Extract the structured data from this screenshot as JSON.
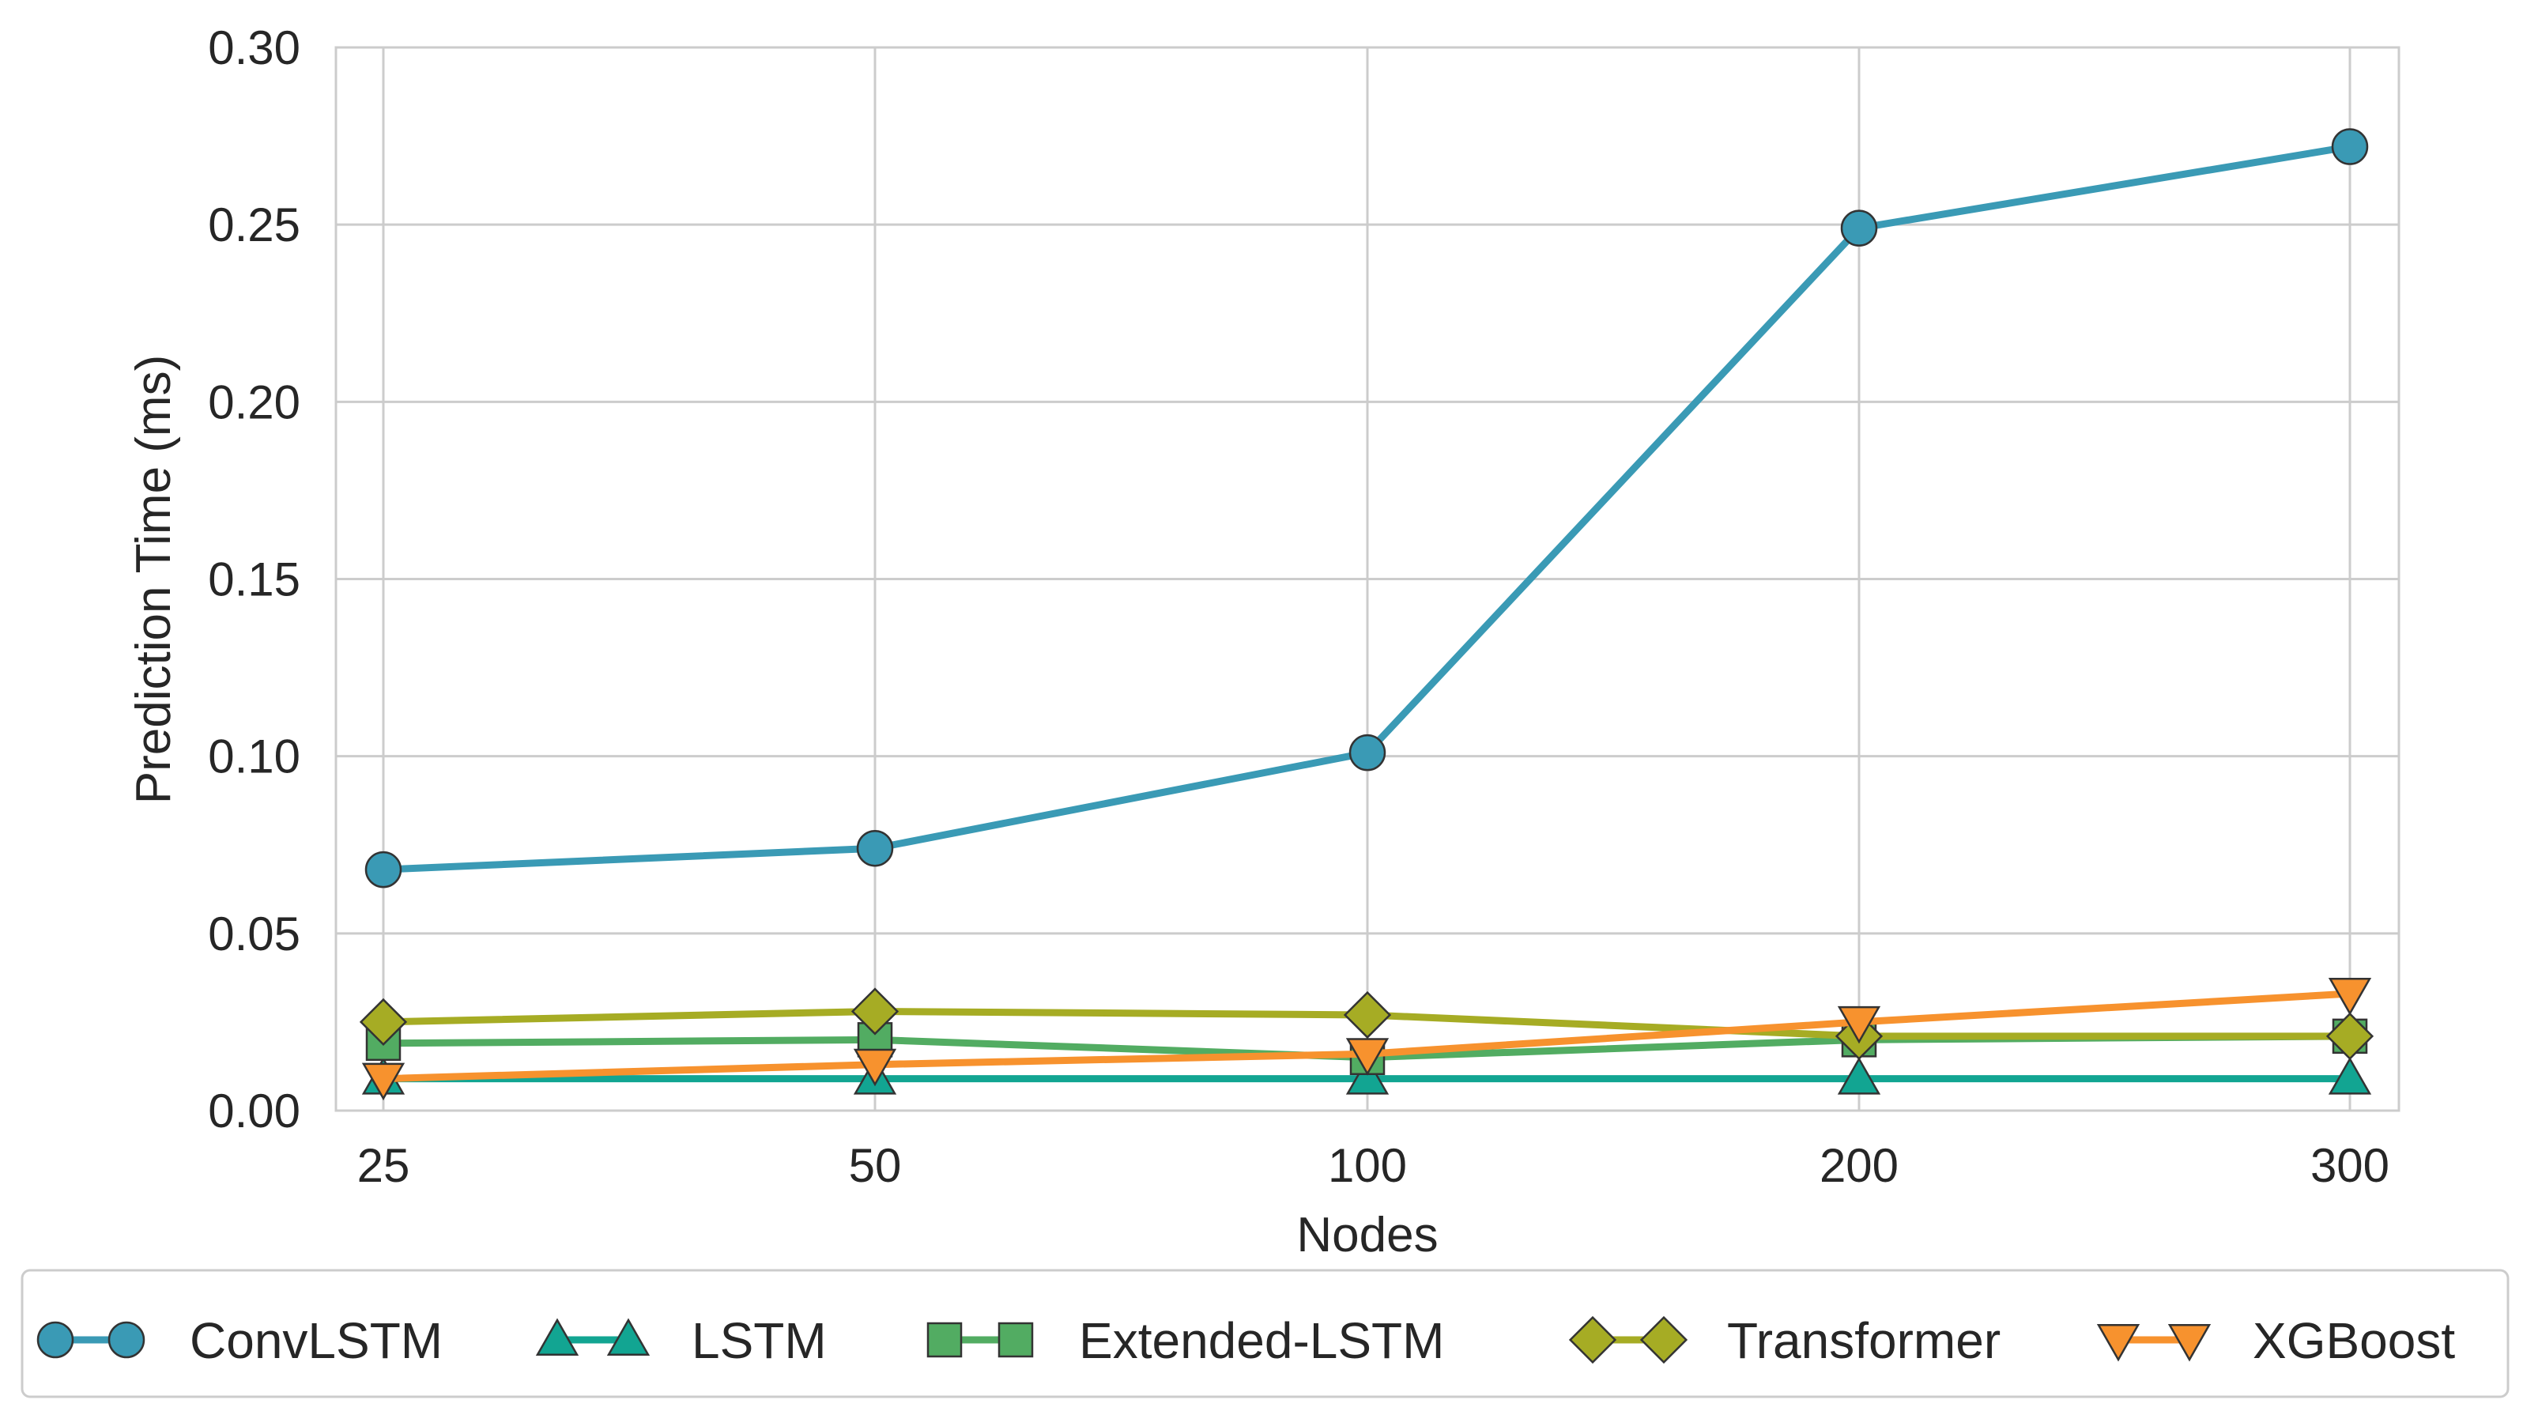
{
  "chart_data": {
    "type": "line",
    "title": "",
    "xlabel": "Nodes",
    "ylabel": "Prediction Time (ms)",
    "categories": [
      "25",
      "50",
      "100",
      "200",
      "300"
    ],
    "ylim": [
      0.0,
      0.3
    ],
    "yticks": [
      "0.00",
      "0.05",
      "0.10",
      "0.15",
      "0.20",
      "0.25",
      "0.30"
    ],
    "grid": true,
    "legend_position": "bottom",
    "series": [
      {
        "name": "ConvLSTM",
        "color": "#3a9ab5",
        "marker": "circle",
        "values": [
          0.068,
          0.074,
          0.101,
          0.249,
          0.272
        ]
      },
      {
        "name": "LSTM",
        "color": "#12a592",
        "marker": "triangle-up",
        "values": [
          0.009,
          0.009,
          0.009,
          0.009,
          0.009
        ]
      },
      {
        "name": "Extended-LSTM",
        "color": "#52ac62",
        "marker": "square",
        "values": [
          0.019,
          0.02,
          0.015,
          0.02,
          0.021
        ]
      },
      {
        "name": "Transformer",
        "color": "#a6ac24",
        "marker": "diamond",
        "values": [
          0.025,
          0.028,
          0.027,
          0.021,
          0.021
        ]
      },
      {
        "name": "XGBoost",
        "color": "#f7922e",
        "marker": "triangle-down",
        "values": [
          0.009,
          0.013,
          0.016,
          0.025,
          0.033
        ]
      }
    ]
  }
}
